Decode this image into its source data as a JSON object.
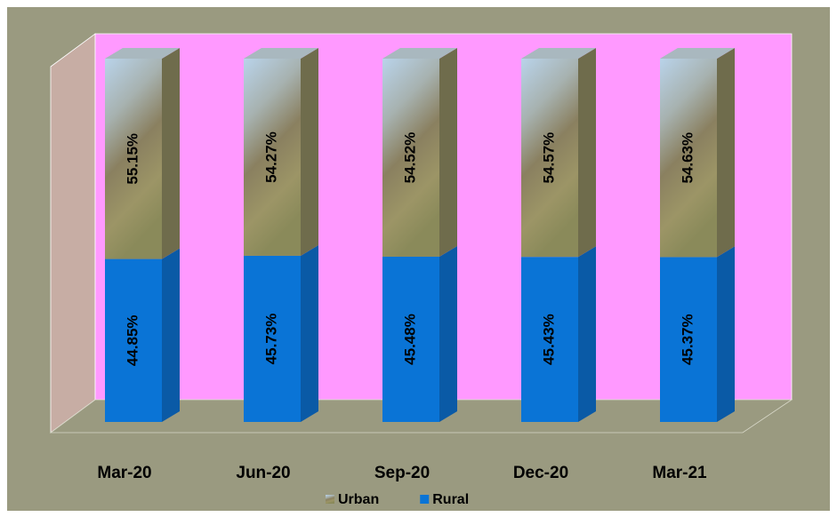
{
  "chart_data": {
    "type": "stacked-bar-3d",
    "categories": [
      "Mar-20",
      "Jun-20",
      "Sep-20",
      "Dec-20",
      "Mar-21"
    ],
    "series": [
      {
        "name": "Rural",
        "color": "#0a74d6",
        "values": [
          44.85,
          45.73,
          45.48,
          45.43,
          45.37
        ],
        "value_labels": [
          "44.85%",
          "45.73%",
          "45.48%",
          "45.43%",
          "45.37%"
        ]
      },
      {
        "name": "Urban",
        "color": "#8f8a5c",
        "values": [
          55.15,
          54.27,
          54.52,
          54.57,
          54.63
        ],
        "value_labels": [
          "55.15%",
          "54.27%",
          "54.52%",
          "54.57%",
          "54.63%"
        ]
      }
    ],
    "legend": "bottom"
  }
}
